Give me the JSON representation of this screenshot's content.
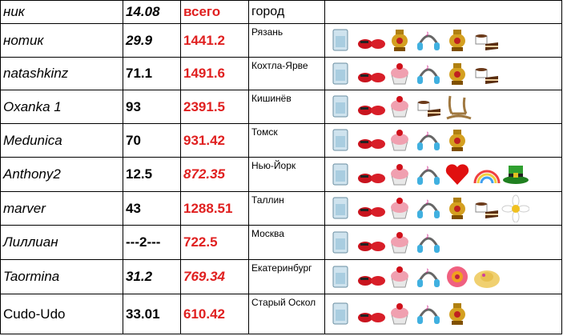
{
  "table": {
    "header": [
      "ник",
      "14.08",
      "всего",
      "город",
      ""
    ],
    "rows": [
      [
        "нотик",
        "29.9",
        "1441.2",
        "Рязань"
      ],
      [
        "natashkinz",
        "71.1",
        "1491.6",
        "Кохтла-Ярве"
      ],
      [
        "Oxanka 1",
        "93",
        "2391.5",
        "Кишинёв"
      ],
      [
        "Medunica",
        "70",
        "931.42",
        "Томск"
      ],
      [
        "Anthony2",
        "12.5",
        "872.35",
        "Нью-Йорк"
      ],
      [
        "marver",
        "43",
        "1288.51",
        "Таллин"
      ],
      [
        "Лиллиан",
        "---2---",
        "722.5",
        "Москва"
      ],
      [
        "Taormina",
        "31.2",
        "769.34",
        "Екатеринбург"
      ],
      [
        "Cudo-Udo",
        "33.01",
        "610.42",
        "Старый Оскол"
      ]
    ]
  }
}
